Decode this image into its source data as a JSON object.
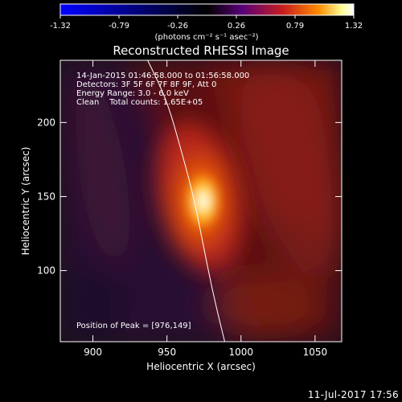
{
  "chart_data": {
    "type": "heatmap",
    "title": "Reconstructed RHESSI Image",
    "xlabel": "Heliocentric X (arcsec)",
    "ylabel": "Heliocentric Y (arcsec)",
    "xlim": [
      878,
      1068
    ],
    "ylim": [
      52,
      242
    ],
    "x_ticks": [
      900,
      950,
      1000,
      1050
    ],
    "y_ticks": [
      100,
      150,
      200
    ],
    "colorbar": {
      "range": [
        -1.32,
        1.32
      ],
      "ticks": [
        "-1.32",
        "-0.79",
        "-0.26",
        "0.26",
        "0.79",
        "1.32"
      ],
      "unit_label": "(photons cm⁻² s⁻¹ asec⁻²)",
      "colormap": [
        "#0000ff",
        "#000000",
        "#5a0078",
        "#c81e1e",
        "#ff8c00",
        "#ffff96",
        "#ffffff"
      ]
    },
    "annotations": [
      "14-Jan-2015 01:46:58.000 to 01:56:58.000",
      "Detectors: 3F 5F 6F 7F 8F 9F, Att 0",
      "Energy Range: 3.0 - 6.0 keV",
      "Clean    Total counts: 1.65E+05"
    ],
    "peak_text": "Position of Peak = [976,149]",
    "peak": {
      "x": 976,
      "y": 149,
      "value": 1.32
    },
    "limb_curve": [
      [
        937,
        242
      ],
      [
        950,
        215
      ],
      [
        960,
        180
      ],
      [
        968,
        150
      ],
      [
        974,
        120
      ],
      [
        981,
        85
      ],
      [
        989,
        52
      ]
    ],
    "grid": false
  },
  "footer": {
    "datestamp": "11-Jul-2017 17:56"
  }
}
